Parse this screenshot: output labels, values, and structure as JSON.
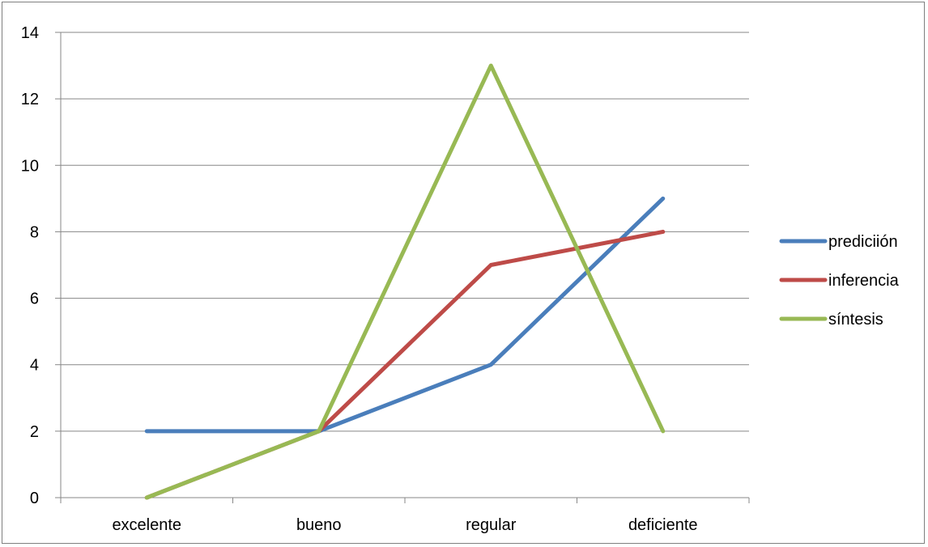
{
  "chart_data": {
    "type": "line",
    "title": "",
    "xlabel": "",
    "ylabel": "",
    "categories": [
      "excelente",
      "bueno",
      "regular",
      "deficiente"
    ],
    "ylim": [
      0,
      14
    ],
    "yticks": [
      0,
      2,
      4,
      6,
      8,
      10,
      12,
      14
    ],
    "grid": true,
    "legend_position": "right",
    "series": [
      {
        "name": "prediciión",
        "color": "#4a7ebb",
        "values": [
          2,
          2,
          4,
          9
        ]
      },
      {
        "name": "inferencia",
        "color": "#be4b48",
        "values": [
          0,
          2,
          7,
          8
        ]
      },
      {
        "name": "síntesis",
        "color": "#98b954",
        "values": [
          0,
          2,
          13,
          2
        ]
      }
    ]
  }
}
